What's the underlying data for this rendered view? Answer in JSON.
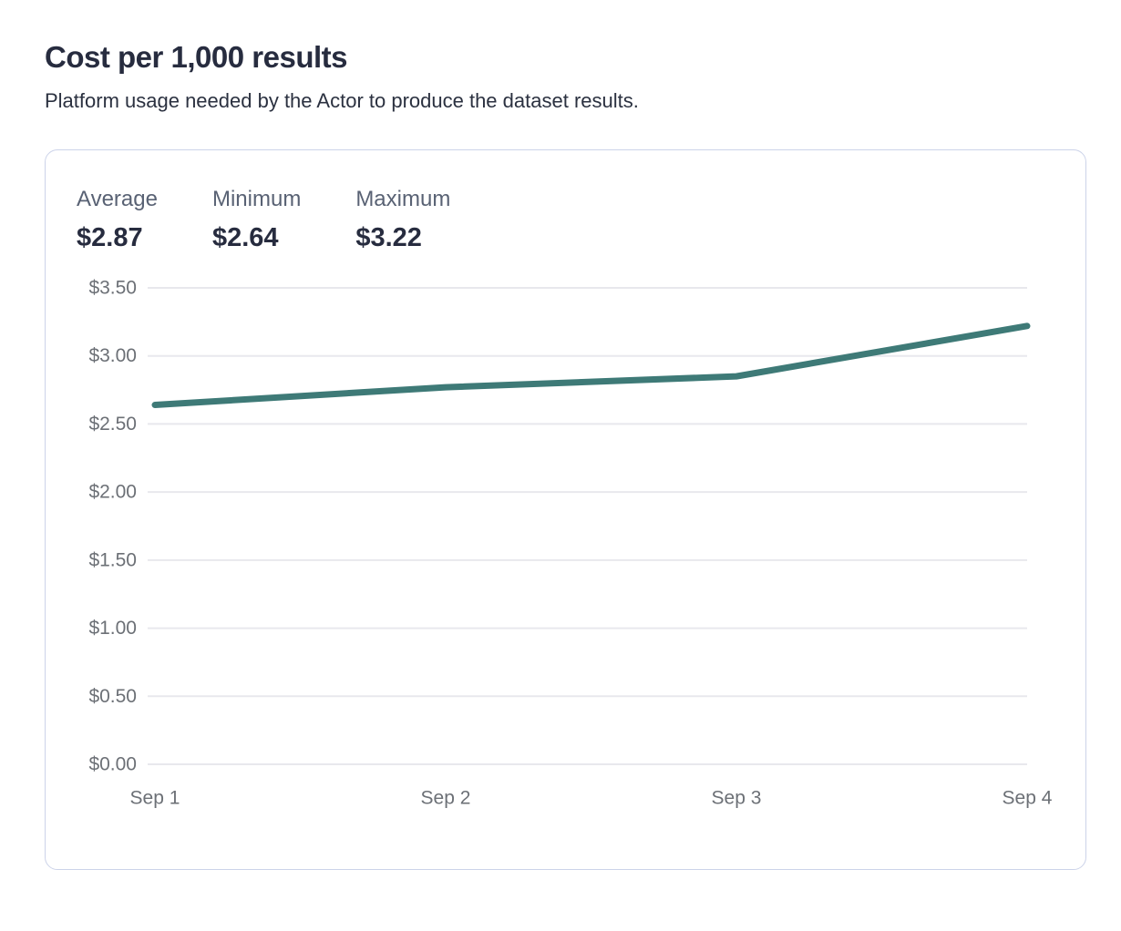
{
  "header": {
    "title": "Cost per 1,000 results",
    "subtitle": "Platform usage needed by the Actor to produce the dataset results."
  },
  "stats": [
    {
      "label": "Average",
      "value": "$2.87"
    },
    {
      "label": "Minimum",
      "value": "$2.64"
    },
    {
      "label": "Maximum",
      "value": "$3.22"
    }
  ],
  "chart_data": {
    "type": "line",
    "title": "Cost per 1,000 results",
    "categories": [
      "Sep 1",
      "Sep 2",
      "Sep 3",
      "Sep 4"
    ],
    "values": [
      2.64,
      2.77,
      2.85,
      3.22
    ],
    "y_tick_labels": [
      "$3.50",
      "$3.00",
      "$2.50",
      "$2.00",
      "$1.50",
      "$1.00",
      "$0.50",
      "$0.00"
    ],
    "y_tick_values": [
      3.5,
      3.0,
      2.5,
      2.0,
      1.5,
      1.0,
      0.5,
      0.0
    ],
    "ylim": [
      0,
      3.5
    ],
    "xlabel": "",
    "ylabel": "",
    "grid": true,
    "legend_position": "none",
    "line_color": "#3e7a77",
    "grid_color": "#e8e8ed",
    "axis_label_color": "#6c7076"
  }
}
